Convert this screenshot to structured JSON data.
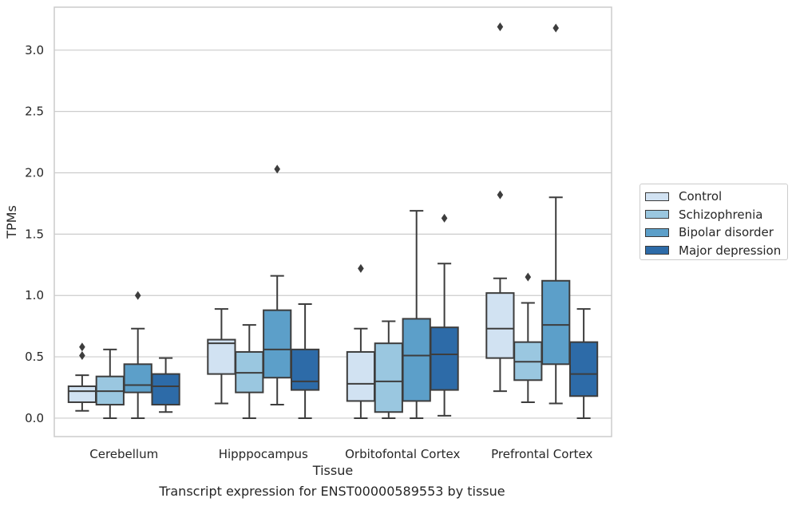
{
  "chart_data": {
    "type": "box",
    "caption": "Transcript expression for ENST00000589553 by tissue",
    "xlabel": "Tissue",
    "ylabel": "TPMs",
    "ylim": [
      -0.15,
      3.35
    ],
    "yticks": [
      "0.0",
      "0.5",
      "1.0",
      "1.5",
      "2.0",
      "2.5",
      "3.0"
    ],
    "ytick_values": [
      0,
      0.5,
      1.0,
      1.5,
      2.0,
      2.5,
      3.0
    ],
    "grid": true,
    "legend_position": "right",
    "categories": [
      "Cerebellum",
      "Hipppocampus",
      "Orbitofontal Cortex",
      "Prefrontal Cortex"
    ],
    "series": [
      {
        "name": "Control",
        "color": "#d1e2f2",
        "boxes": [
          {
            "min": 0.06,
            "q1": 0.13,
            "median": 0.22,
            "q3": 0.26,
            "max": 0.35,
            "outliers": [
              0.51,
              0.58
            ]
          },
          {
            "min": 0.12,
            "q1": 0.36,
            "median": 0.61,
            "q3": 0.64,
            "max": 0.89,
            "outliers": []
          },
          {
            "min": 0.0,
            "q1": 0.14,
            "median": 0.28,
            "q3": 0.54,
            "max": 0.73,
            "outliers": [
              1.22
            ]
          },
          {
            "min": 0.22,
            "q1": 0.49,
            "median": 0.73,
            "q3": 1.02,
            "max": 1.14,
            "outliers": [
              1.82,
              3.19
            ]
          }
        ]
      },
      {
        "name": "Schizophrenia",
        "color": "#9ac7e0",
        "boxes": [
          {
            "min": 0.0,
            "q1": 0.11,
            "median": 0.22,
            "q3": 0.34,
            "max": 0.56,
            "outliers": []
          },
          {
            "min": 0.0,
            "q1": 0.21,
            "median": 0.37,
            "q3": 0.54,
            "max": 0.76,
            "outliers": []
          },
          {
            "min": 0.0,
            "q1": 0.05,
            "median": 0.3,
            "q3": 0.61,
            "max": 0.79,
            "outliers": []
          },
          {
            "min": 0.13,
            "q1": 0.31,
            "median": 0.46,
            "q3": 0.62,
            "max": 0.94,
            "outliers": [
              1.15
            ]
          }
        ]
      },
      {
        "name": "Bipolar disorder",
        "color": "#5c9fc9",
        "boxes": [
          {
            "min": 0.0,
            "q1": 0.21,
            "median": 0.27,
            "q3": 0.44,
            "max": 0.73,
            "outliers": [
              1.0
            ]
          },
          {
            "min": 0.11,
            "q1": 0.33,
            "median": 0.56,
            "q3": 0.88,
            "max": 1.16,
            "outliers": [
              2.03
            ]
          },
          {
            "min": 0.0,
            "q1": 0.14,
            "median": 0.51,
            "q3": 0.81,
            "max": 1.69,
            "outliers": []
          },
          {
            "min": 0.12,
            "q1": 0.44,
            "median": 0.76,
            "q3": 1.12,
            "max": 1.8,
            "outliers": [
              3.18
            ]
          }
        ]
      },
      {
        "name": "Major depression",
        "color": "#2d6ba8",
        "boxes": [
          {
            "min": 0.05,
            "q1": 0.11,
            "median": 0.26,
            "q3": 0.36,
            "max": 0.49,
            "outliers": []
          },
          {
            "min": 0.0,
            "q1": 0.23,
            "median": 0.3,
            "q3": 0.56,
            "max": 0.93,
            "outliers": []
          },
          {
            "min": 0.02,
            "q1": 0.23,
            "median": 0.52,
            "q3": 0.74,
            "max": 1.26,
            "outliers": [
              1.63
            ]
          },
          {
            "min": 0.0,
            "q1": 0.18,
            "median": 0.36,
            "q3": 0.62,
            "max": 0.89,
            "outliers": []
          }
        ]
      }
    ]
  }
}
